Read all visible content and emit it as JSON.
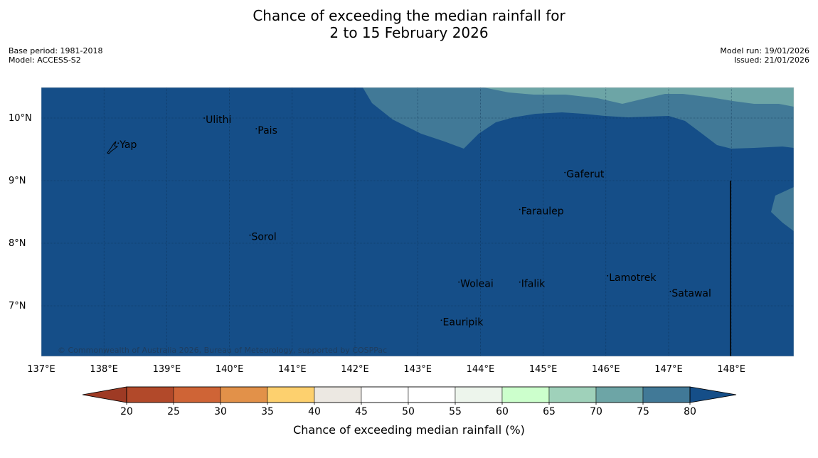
{
  "title_line1": "Chance of exceeding the median rainfall for",
  "title_line2": "2 to 15 February 2026",
  "base_period": "Base period: 1981-2018",
  "model": "Model: ACCESS-S2",
  "model_run": "Model run: 19/01/2026",
  "issued": "Issued: 21/01/2026",
  "copyright": "© Commonwealth of Australia 2026, Bureau of Meteorology, supported by COSPPac",
  "lat_labels": [
    "10°N",
    "9°N",
    "8°N",
    "7°N"
  ],
  "lon_labels": [
    "137°E",
    "138°E",
    "139°E",
    "140°E",
    "141°E",
    "142°E",
    "143°E",
    "144°E",
    "145°E",
    "146°E",
    "147°E",
    "148°E"
  ],
  "places": [
    {
      "name": "Yap",
      "lon": 138.25,
      "lat": 9.52
    },
    {
      "name": "Ulithi",
      "lon": 139.62,
      "lat": 9.92
    },
    {
      "name": "Pais",
      "lon": 140.45,
      "lat": 9.75
    },
    {
      "name": "Gaferut",
      "lon": 145.37,
      "lat": 9.05
    },
    {
      "name": "Faraulep",
      "lon": 144.65,
      "lat": 8.46
    },
    {
      "name": "Sorol",
      "lon": 140.35,
      "lat": 8.05
    },
    {
      "name": "Lamotrek",
      "lon": 146.05,
      "lat": 7.4
    },
    {
      "name": "Woleai",
      "lon": 143.68,
      "lat": 7.3
    },
    {
      "name": "Ifalik",
      "lon": 144.65,
      "lat": 7.3
    },
    {
      "name": "Satawal",
      "lon": 147.05,
      "lat": 7.15
    },
    {
      "name": "Eauripik",
      "lon": 143.4,
      "lat": 6.69
    }
  ],
  "colorbar": {
    "ticks": [
      "20",
      "25",
      "30",
      "35",
      "40",
      "45",
      "50",
      "55",
      "60",
      "65",
      "70",
      "75",
      "80"
    ],
    "colors": [
      "#b2492a",
      "#cf6436",
      "#e29149",
      "#fdd06e",
      "#ece8e2",
      "#ffffff",
      "#ffffff",
      "#edf5ec",
      "#ccffcc",
      "#9fd1ba",
      "#6da5a6",
      "#417997"
    ],
    "under_color": "#9e3a24",
    "over_color": "#154e88",
    "label": "Chance of exceeding median rainfall (%)"
  },
  "map_colors": {
    "over80": "#154e88",
    "band75_80": "#417997",
    "band70_75": "#6da5a6"
  }
}
